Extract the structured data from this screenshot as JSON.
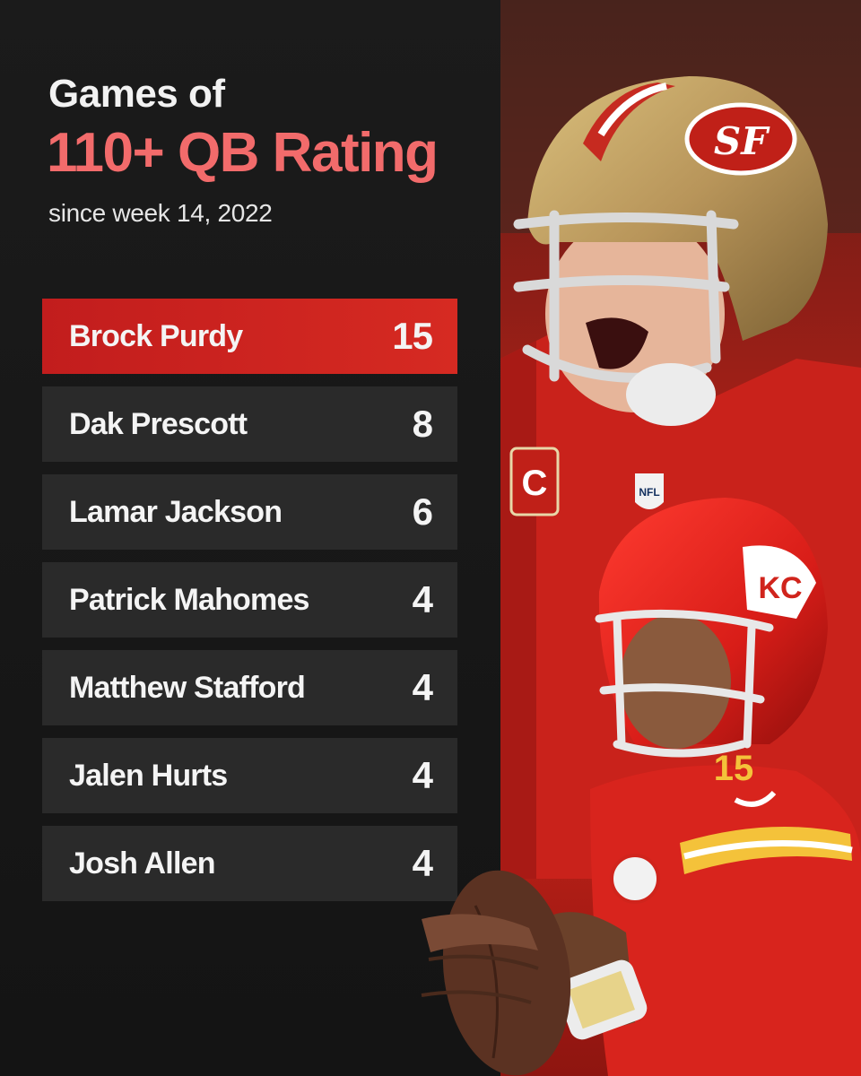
{
  "header": {
    "title_line1": "Games of",
    "title_line2": "110+ QB Rating",
    "subtitle": "since week 14, 2022"
  },
  "rankings": [
    {
      "name": "Brock Purdy",
      "games": "15"
    },
    {
      "name": "Dak Prescott",
      "games": "8"
    },
    {
      "name": "Lamar Jackson",
      "games": "6"
    },
    {
      "name": "Patrick Mahomes",
      "games": "4"
    },
    {
      "name": "Matthew Stafford",
      "games": "4"
    },
    {
      "name": "Jalen Hurts",
      "games": "4"
    },
    {
      "name": "Josh Allen",
      "games": "4"
    }
  ],
  "photo": {
    "helmet_logo_top": "SF",
    "helmet_logo_bottom": "KC",
    "jersey_number": "15",
    "captain_patch": "C",
    "shield_text": "NFL"
  },
  "colors": {
    "accent": "#f26b6b",
    "highlight_row": "#c21d1d",
    "row_bg": "#2a2a2a",
    "background": "#161616"
  }
}
